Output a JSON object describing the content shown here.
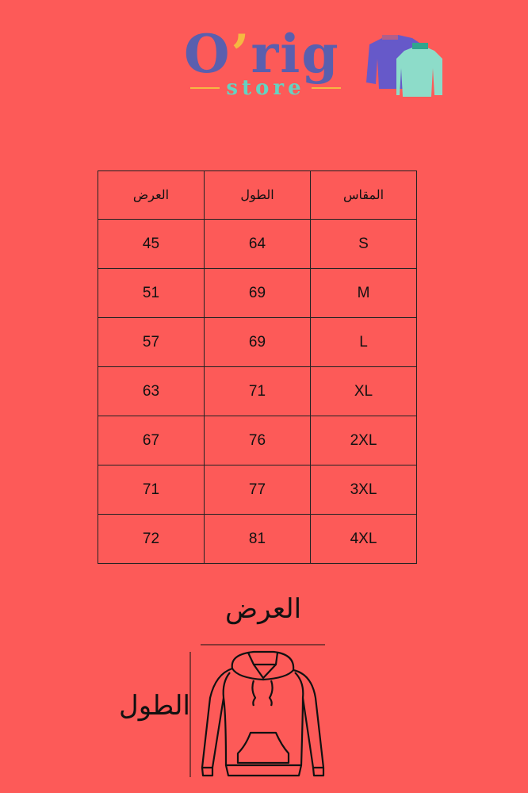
{
  "logo": {
    "brand": "O",
    "apostrophe": "’",
    "brand_rest": "rig",
    "sub": "store",
    "icon": "sweaters-icon"
  },
  "colors": {
    "background": "#fd5a58",
    "brand": "#5a5fae",
    "accent_yellow": "#f5b841",
    "accent_teal": "#66d2c1"
  },
  "table": {
    "headers": [
      "المقاس",
      "الطول",
      "العرض"
    ],
    "rows": [
      [
        "S",
        "64",
        "45"
      ],
      [
        "M",
        "69",
        "51"
      ],
      [
        "L",
        "69",
        "57"
      ],
      [
        "XL",
        "71",
        "63"
      ],
      [
        "2XL",
        "76",
        "67"
      ],
      [
        "3XL",
        "77",
        "71"
      ],
      [
        "4XL",
        "81",
        "72"
      ]
    ]
  },
  "diagram": {
    "width_label": "العرض",
    "length_label": "الطول",
    "icon": "hoodie-icon"
  }
}
